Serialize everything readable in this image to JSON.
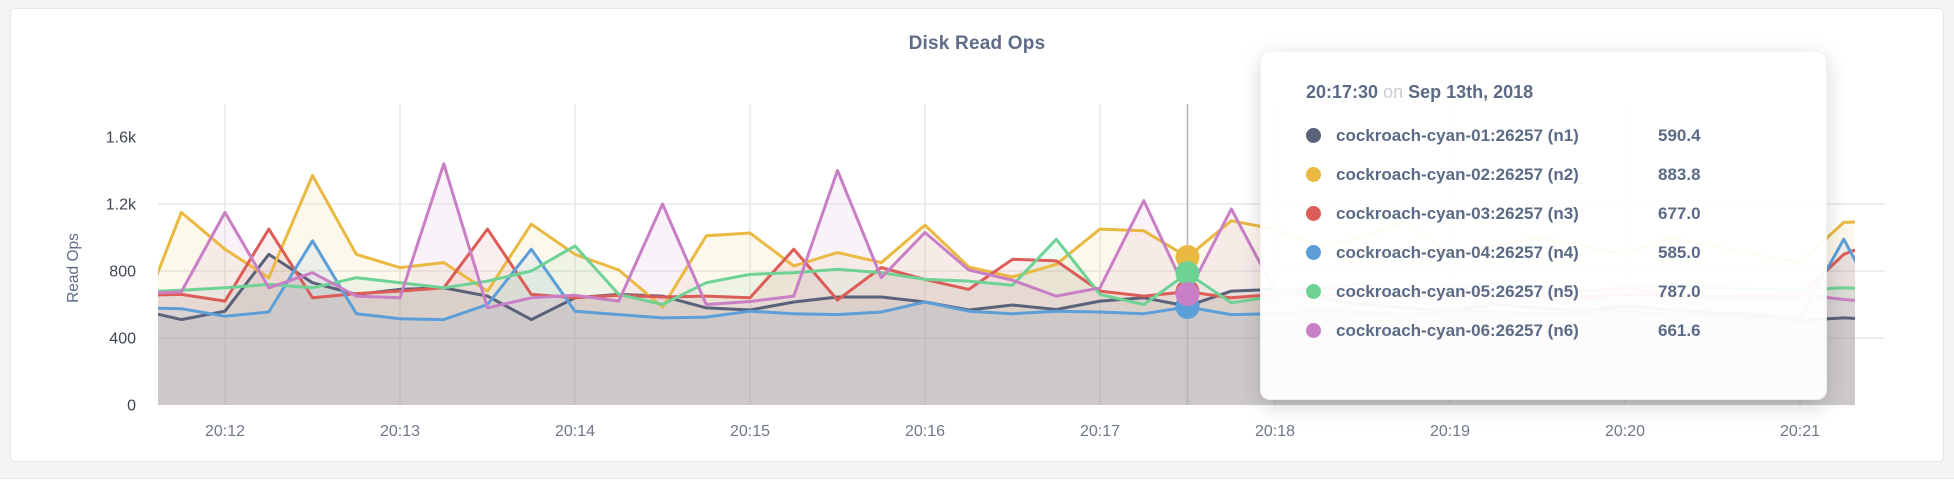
{
  "page": {
    "background": "#f4f4f5",
    "card_background": "#ffffff",
    "card_border": "#e5e6e8"
  },
  "chart": {
    "title": "Disk Read Ops",
    "y_axis_label": "Read Ops",
    "y_ticks": [
      {
        "label": "0",
        "value": 0
      },
      {
        "label": "400",
        "value": 400
      },
      {
        "label": "800",
        "value": 800
      },
      {
        "label": "1.2k",
        "value": 1200
      },
      {
        "label": "1.6k",
        "value": 1600
      }
    ],
    "x_tick_labels": [
      "20:12",
      "20:13",
      "20:14",
      "20:15",
      "20:16",
      "20:17",
      "20:18",
      "20:19",
      "20:20",
      "20:21"
    ],
    "grid_color": "#e9e9e9",
    "hover_line_color": "#b5b5b5"
  },
  "chart_data": {
    "type": "area",
    "title": "Disk Read Ops",
    "ylabel": "Read Ops",
    "ylim": [
      0,
      1600
    ],
    "y_gridlines": [
      400,
      800,
      1200
    ],
    "x_start": "20:11:30",
    "x_end": "20:21:30",
    "x_step_seconds": 15,
    "x_visible_range": [
      "20:11:37",
      "20:21:19"
    ],
    "hover_time": "20:17:30",
    "series": [
      {
        "name": "cockroach-cyan-01:26257 (n1)",
        "node": "n1",
        "color": "#5A627A",
        "values": [
          570,
          510,
          560,
          900,
          730,
          660,
          690,
          700,
          650,
          510,
          640,
          660,
          650,
          580,
          567,
          615,
          645,
          645,
          615,
          567,
          597,
          570,
          620,
          640,
          590.4,
          680,
          690,
          640,
          600,
          580,
          560,
          600,
          580,
          560,
          590,
          570,
          550,
          540,
          505,
          520,
          510
        ]
      },
      {
        "name": "cockroach-cyan-02:26257 (n2)",
        "node": "n2",
        "color": "#E9B941",
        "values": [
          480,
          1150,
          930,
          760,
          1370,
          900,
          820,
          850,
          680,
          1080,
          900,
          806,
          585,
          1010,
          1027,
          830,
          910,
          850,
          1074,
          824,
          764,
          840,
          1050,
          1040,
          883.8,
          1100,
          1050,
          950,
          1000,
          1100,
          900,
          950,
          1000,
          950,
          900,
          1000,
          950,
          900,
          850,
          1090,
          1100
        ]
      },
      {
        "name": "cockroach-cyan-03:26257 (n3)",
        "node": "n3",
        "color": "#DC5C57",
        "values": [
          655,
          660,
          620,
          1050,
          640,
          665,
          680,
          700,
          1050,
          660,
          640,
          655,
          645,
          650,
          640,
          930,
          627,
          820,
          750,
          690,
          870,
          860,
          680,
          650,
          677.0,
          640,
          660,
          650,
          670,
          640,
          660,
          680,
          650,
          640,
          660,
          650,
          640,
          650,
          650,
          900,
          1000
        ]
      },
      {
        "name": "cockroach-cyan-04:26257 (n4)",
        "node": "n4",
        "color": "#5C9FD8",
        "values": [
          580,
          575,
          530,
          555,
          980,
          545,
          515,
          510,
          600,
          930,
          560,
          540,
          520,
          525,
          560,
          545,
          540,
          555,
          615,
          560,
          545,
          560,
          555,
          545,
          585.0,
          540,
          545,
          560,
          550,
          540,
          555,
          560,
          545,
          550,
          560,
          540,
          530,
          520,
          520,
          990,
          500
        ]
      },
      {
        "name": "cockroach-cyan-05:26257 (n5)",
        "node": "n5",
        "color": "#6FD295",
        "values": [
          675,
          685,
          700,
          720,
          700,
          760,
          730,
          700,
          740,
          800,
          950,
          660,
          600,
          730,
          780,
          790,
          810,
          790,
          750,
          740,
          715,
          990,
          660,
          600,
          787.0,
          610,
          650,
          700,
          720,
          680,
          700,
          720,
          700,
          680,
          700,
          720,
          700,
          690,
          687,
          700,
          690
        ]
      },
      {
        "name": "cockroach-cyan-06:26257 (n6)",
        "node": "n6",
        "color": "#C97FC6",
        "values": [
          665,
          675,
          1150,
          700,
          790,
          650,
          640,
          1440,
          580,
          640,
          655,
          620,
          1200,
          600,
          618,
          650,
          1400,
          760,
          1030,
          806,
          745,
          650,
          700,
          1220,
          661.6,
          1170,
          680,
          700,
          680,
          660,
          700,
          680,
          660,
          680,
          700,
          660,
          650,
          660,
          660,
          630,
          610
        ]
      }
    ]
  },
  "tooltip": {
    "time": "20:17:30",
    "on_word": "on",
    "date": "Sep 13th, 2018",
    "rows": [
      {
        "name": "cockroach-cyan-01:26257 (n1)",
        "value": "590.4",
        "color": "#5A627A"
      },
      {
        "name": "cockroach-cyan-02:26257 (n2)",
        "value": "883.8",
        "color": "#E9B941"
      },
      {
        "name": "cockroach-cyan-03:26257 (n3)",
        "value": "677.0",
        "color": "#DC5C57"
      },
      {
        "name": "cockroach-cyan-04:26257 (n4)",
        "value": "585.0",
        "color": "#5C9FD8"
      },
      {
        "name": "cockroach-cyan-05:26257 (n5)",
        "value": "787.0",
        "color": "#6FD295"
      },
      {
        "name": "cockroach-cyan-06:26257 (n6)",
        "value": "661.6",
        "color": "#C97FC6"
      }
    ]
  }
}
